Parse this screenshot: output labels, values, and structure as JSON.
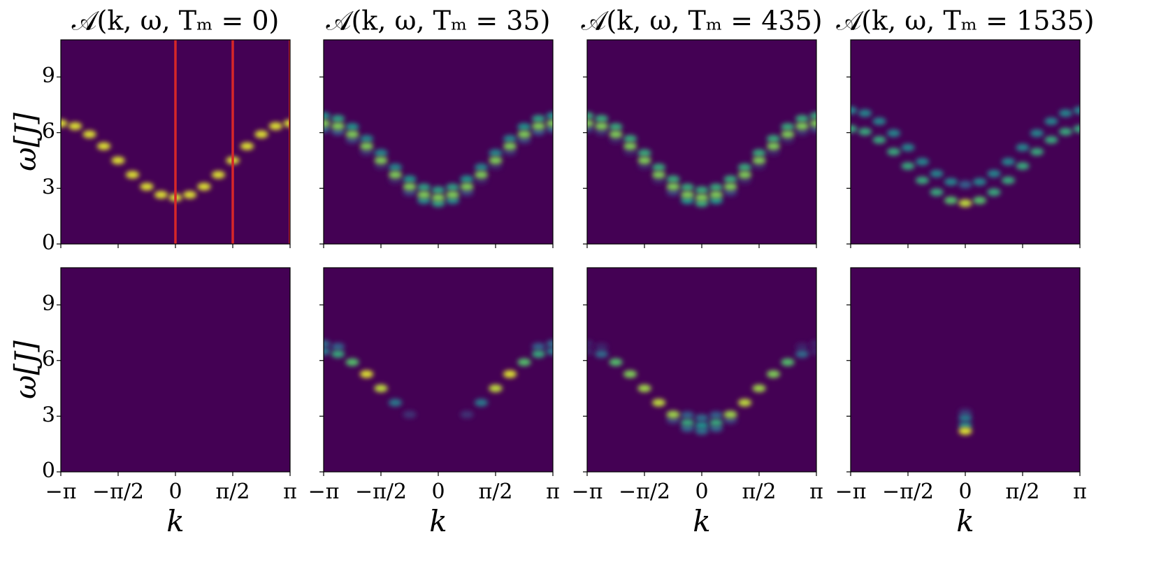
{
  "chart_data": [
    {
      "type": "heatmap",
      "title": "𝒜(k, ω, Tₘ = 0)",
      "ylabel": "ω[J]",
      "colormap": "viridis",
      "xlim": [
        -3.1416,
        3.1416
      ],
      "ylim": [
        0,
        11
      ],
      "xticks": [
        {
          "value": -3.1416,
          "label": "−π"
        },
        {
          "value": -1.5708,
          "label": "−π/2"
        },
        0,
        {
          "value": 1.5708,
          "label": "π/2"
        },
        {
          "value": 3.1416,
          "label": "π"
        }
      ],
      "yticks": [
        0,
        3,
        6,
        9
      ],
      "vlines": [
        0,
        1.5708,
        3.1416
      ],
      "vline_color": "#d62728",
      "x": [
        -3.142,
        -2.749,
        -2.356,
        -1.963,
        -1.571,
        -1.178,
        -0.785,
        -0.393,
        0,
        0.393,
        0.785,
        1.178,
        1.571,
        1.963,
        2.356,
        2.749,
        3.142
      ],
      "branches": [
        {
          "y": [
            6.5,
            6.35,
            5.91,
            5.27,
            4.5,
            3.73,
            3.09,
            2.65,
            2.5,
            2.65,
            3.09,
            3.73,
            4.5,
            5.27,
            5.91,
            6.35,
            6.5
          ],
          "values": [
            0.95,
            0.95,
            0.95,
            0.95,
            0.95,
            0.95,
            0.95,
            0.95,
            0.95,
            0.95,
            0.95,
            0.95,
            0.95,
            0.95,
            0.95,
            0.95,
            0.95
          ]
        }
      ]
    },
    {
      "type": "heatmap",
      "title": "𝒜(k, ω, Tₘ = 35)",
      "colormap": "viridis",
      "xlim": [
        -3.1416,
        3.1416
      ],
      "ylim": [
        0,
        11
      ],
      "xticks": [
        {
          "value": -3.1416,
          "label": "−π"
        },
        {
          "value": -1.5708,
          "label": "−π/2"
        },
        0,
        {
          "value": 1.5708,
          "label": "π/2"
        },
        {
          "value": 3.1416,
          "label": "π"
        }
      ],
      "yticks": [
        0,
        3,
        6,
        9
      ],
      "x": [
        -3.142,
        -2.749,
        -2.356,
        -1.963,
        -1.571,
        -1.178,
        -0.785,
        -0.393,
        0,
        0.393,
        0.785,
        1.178,
        1.571,
        1.963,
        2.356,
        2.749,
        3.142
      ],
      "branches": [
        {
          "y": [
            6.9,
            6.75,
            6.31,
            5.67,
            4.9,
            4.13,
            3.49,
            3.05,
            2.9,
            3.05,
            3.49,
            4.13,
            4.9,
            5.67,
            6.31,
            6.75,
            6.9
          ],
          "values": [
            0.5,
            0.55,
            0.5,
            0.45,
            0.45,
            0.45,
            0.5,
            0.55,
            0.55,
            0.55,
            0.5,
            0.45,
            0.45,
            0.45,
            0.5,
            0.55,
            0.5
          ]
        },
        {
          "y": [
            6.5,
            6.35,
            5.91,
            5.27,
            4.5,
            3.73,
            3.09,
            2.65,
            2.5,
            2.65,
            3.09,
            3.73,
            4.5,
            5.27,
            5.91,
            6.35,
            6.5
          ],
          "values": [
            0.8,
            0.8,
            0.8,
            0.8,
            0.8,
            0.8,
            0.8,
            0.8,
            0.8,
            0.8,
            0.8,
            0.8,
            0.8,
            0.8,
            0.8,
            0.8,
            0.8
          ]
        },
        {
          "y": [
            6.2,
            6.05,
            5.61,
            4.97,
            4.2,
            3.43,
            2.79,
            2.35,
            2.2,
            2.35,
            2.79,
            3.43,
            4.2,
            4.97,
            5.61,
            6.05,
            6.2
          ],
          "values": [
            0.3,
            0.25,
            0.2,
            0.15,
            0.1,
            0.1,
            0.2,
            0.45,
            0.55,
            0.45,
            0.2,
            0.1,
            0.1,
            0.15,
            0.2,
            0.25,
            0.3
          ]
        }
      ]
    },
    {
      "type": "heatmap",
      "title": "𝒜(k, ω, Tₘ = 435)",
      "colormap": "viridis",
      "xlim": [
        -3.1416,
        3.1416
      ],
      "ylim": [
        0,
        11
      ],
      "xticks": [
        {
          "value": -3.1416,
          "label": "−π"
        },
        {
          "value": -1.5708,
          "label": "−π/2"
        },
        0,
        {
          "value": 1.5708,
          "label": "π/2"
        },
        {
          "value": 3.1416,
          "label": "π"
        }
      ],
      "yticks": [
        0,
        3,
        6,
        9
      ],
      "x": [
        -3.142,
        -2.749,
        -2.356,
        -1.963,
        -1.571,
        -1.178,
        -0.785,
        -0.393,
        0,
        0.393,
        0.785,
        1.178,
        1.571,
        1.963,
        2.356,
        2.749,
        3.142
      ],
      "branches": [
        {
          "y": [
            6.9,
            6.75,
            6.31,
            5.67,
            4.9,
            4.13,
            3.49,
            3.05,
            2.9,
            3.05,
            3.49,
            4.13,
            4.9,
            5.67,
            6.31,
            6.75,
            6.9
          ],
          "values": [
            0.6,
            0.6,
            0.6,
            0.6,
            0.6,
            0.6,
            0.6,
            0.6,
            0.6,
            0.6,
            0.6,
            0.6,
            0.6,
            0.6,
            0.6,
            0.6,
            0.6
          ]
        },
        {
          "y": [
            6.5,
            6.35,
            5.91,
            5.27,
            4.5,
            3.73,
            3.09,
            2.65,
            2.5,
            2.65,
            3.09,
            3.73,
            4.5,
            5.27,
            5.91,
            6.35,
            6.5
          ],
          "values": [
            0.8,
            0.8,
            0.8,
            0.8,
            0.8,
            0.8,
            0.8,
            0.8,
            0.8,
            0.8,
            0.8,
            0.8,
            0.8,
            0.8,
            0.8,
            0.8,
            0.8
          ]
        },
        {
          "y": [
            6.2,
            6.05,
            5.61,
            4.97,
            4.2,
            3.43,
            2.79,
            2.35,
            2.2,
            2.35,
            2.79,
            3.43,
            4.2,
            4.97,
            5.61,
            6.05,
            6.2
          ],
          "values": [
            0.2,
            0.15,
            0.1,
            0.1,
            0.1,
            0.1,
            0.2,
            0.5,
            0.6,
            0.5,
            0.2,
            0.1,
            0.1,
            0.1,
            0.1,
            0.15,
            0.2
          ]
        }
      ]
    },
    {
      "type": "heatmap",
      "title": "𝒜(k, ω, Tₘ = 1535)",
      "colormap": "viridis",
      "xlim": [
        -3.1416,
        3.1416
      ],
      "ylim": [
        0,
        11
      ],
      "xticks": [
        {
          "value": -3.1416,
          "label": "−π"
        },
        {
          "value": -1.5708,
          "label": "−π/2"
        },
        0,
        {
          "value": 1.5708,
          "label": "π/2"
        },
        {
          "value": 3.1416,
          "label": "π"
        }
      ],
      "yticks": [
        0,
        3,
        6,
        9
      ],
      "x": [
        -3.142,
        -2.749,
        -2.356,
        -1.963,
        -1.571,
        -1.178,
        -0.785,
        -0.393,
        0,
        0.393,
        0.785,
        1.178,
        1.571,
        1.963,
        2.356,
        2.749,
        3.142
      ],
      "branches": [
        {
          "y": [
            7.2,
            7.05,
            6.61,
            5.97,
            5.2,
            4.43,
            3.79,
            3.35,
            3.2,
            3.35,
            3.79,
            4.43,
            5.2,
            5.97,
            6.61,
            7.05,
            7.2
          ],
          "values": [
            0.45,
            0.45,
            0.45,
            0.45,
            0.45,
            0.45,
            0.45,
            0.45,
            0.3,
            0.45,
            0.45,
            0.45,
            0.45,
            0.45,
            0.45,
            0.45,
            0.45
          ]
        },
        {
          "y": [
            6.2,
            6.05,
            5.61,
            4.97,
            4.2,
            3.43,
            2.79,
            2.35,
            2.2,
            2.35,
            2.79,
            3.43,
            4.2,
            4.97,
            5.61,
            6.05,
            6.2
          ],
          "values": [
            0.6,
            0.6,
            0.6,
            0.6,
            0.6,
            0.6,
            0.6,
            0.7,
            0.9,
            0.7,
            0.6,
            0.6,
            0.6,
            0.6,
            0.6,
            0.6,
            0.6
          ]
        }
      ]
    },
    {
      "type": "heatmap",
      "ylabel": "ω[J]",
      "xlabel": "k",
      "colormap": "viridis",
      "xlim": [
        -3.1416,
        3.1416
      ],
      "ylim": [
        0,
        11
      ],
      "xticks": [
        {
          "value": -3.1416,
          "label": "−π"
        },
        {
          "value": -1.5708,
          "label": "−π/2"
        },
        0,
        {
          "value": 1.5708,
          "label": "π/2"
        },
        {
          "value": 3.1416,
          "label": "π"
        }
      ],
      "yticks": [
        0,
        3,
        6,
        9
      ],
      "x": [
        -3.142,
        -2.749,
        -2.356,
        -1.963,
        -1.571,
        -1.178,
        -0.785,
        -0.393,
        0,
        0.393,
        0.785,
        1.178,
        1.571,
        1.963,
        2.356,
        2.749,
        3.142
      ],
      "branches": []
    },
    {
      "type": "heatmap",
      "xlabel": "k",
      "colormap": "viridis",
      "xlim": [
        -3.1416,
        3.1416
      ],
      "ylim": [
        0,
        11
      ],
      "xticks": [
        {
          "value": -3.1416,
          "label": "−π"
        },
        {
          "value": -1.5708,
          "label": "−π/2"
        },
        0,
        {
          "value": 1.5708,
          "label": "π/2"
        },
        {
          "value": 3.1416,
          "label": "π"
        }
      ],
      "yticks": [
        0,
        3,
        6,
        9
      ],
      "x": [
        -3.142,
        -2.749,
        -2.356,
        -1.963,
        -1.571,
        -1.178,
        -0.785,
        -0.393,
        0,
        0.393,
        0.785,
        1.178,
        1.571,
        1.963,
        2.356,
        2.749,
        3.142
      ],
      "branches": [
        {
          "y": [
            6.9,
            6.75,
            6.31,
            5.67,
            4.9,
            4.13,
            3.49,
            3.05,
            2.9,
            3.05,
            3.49,
            4.13,
            4.9,
            5.67,
            6.31,
            6.75,
            6.9
          ],
          "values": [
            0.35,
            0.3,
            null,
            null,
            null,
            null,
            null,
            null,
            null,
            null,
            null,
            null,
            null,
            null,
            null,
            0.3,
            0.35
          ]
        },
        {
          "y": [
            6.5,
            6.35,
            5.91,
            5.27,
            4.5,
            3.73,
            3.09,
            2.65,
            2.5,
            2.65,
            3.09,
            3.73,
            4.5,
            5.27,
            5.91,
            6.35,
            6.5
          ],
          "values": [
            0.4,
            0.6,
            0.7,
            0.95,
            0.9,
            0.4,
            0.15,
            null,
            null,
            null,
            0.15,
            0.4,
            0.9,
            0.95,
            0.7,
            0.6,
            0.4
          ]
        }
      ]
    },
    {
      "type": "heatmap",
      "xlabel": "k",
      "colormap": "viridis",
      "xlim": [
        -3.1416,
        3.1416
      ],
      "ylim": [
        0,
        11
      ],
      "xticks": [
        {
          "value": -3.1416,
          "label": "−π"
        },
        {
          "value": -1.5708,
          "label": "−π/2"
        },
        0,
        {
          "value": 1.5708,
          "label": "π/2"
        },
        {
          "value": 3.1416,
          "label": "π"
        }
      ],
      "yticks": [
        0,
        3,
        6,
        9
      ],
      "x": [
        -3.142,
        -2.749,
        -2.356,
        -1.963,
        -1.571,
        -1.178,
        -0.785,
        -0.393,
        0,
        0.393,
        0.785,
        1.178,
        1.571,
        1.963,
        2.356,
        2.749,
        3.142
      ],
      "branches": [
        {
          "y": [
            6.9,
            6.75,
            6.31,
            5.67,
            4.9,
            4.13,
            3.49,
            3.05,
            2.9,
            3.05,
            3.49,
            4.13,
            4.9,
            5.67,
            6.31,
            6.75,
            6.9
          ],
          "values": [
            0.1,
            0.1,
            null,
            null,
            null,
            null,
            null,
            0.3,
            0.35,
            0.3,
            null,
            null,
            null,
            null,
            null,
            0.1,
            0.1
          ]
        },
        {
          "y": [
            6.5,
            6.35,
            5.91,
            5.27,
            4.5,
            3.73,
            3.09,
            2.65,
            2.5,
            2.65,
            3.09,
            3.73,
            4.5,
            5.27,
            5.91,
            6.35,
            6.5
          ],
          "values": [
            0.1,
            0.35,
            0.7,
            0.8,
            0.85,
            0.9,
            0.85,
            0.6,
            0.5,
            0.6,
            0.85,
            0.9,
            0.85,
            0.8,
            0.7,
            0.35,
            0.1
          ]
        },
        {
          "y": [
            6.2,
            6.05,
            5.61,
            4.97,
            4.2,
            3.43,
            2.79,
            2.35,
            2.2,
            2.35,
            2.79,
            3.43,
            4.2,
            4.97,
            5.61,
            6.05,
            6.2
          ],
          "values": [
            null,
            null,
            null,
            null,
            null,
            null,
            0.2,
            0.3,
            0.35,
            0.3,
            0.2,
            null,
            null,
            null,
            null,
            null,
            null
          ]
        }
      ]
    },
    {
      "type": "heatmap",
      "xlabel": "k",
      "colormap": "viridis",
      "xlim": [
        -3.1416,
        3.1416
      ],
      "ylim": [
        0,
        11
      ],
      "xticks": [
        {
          "value": -3.1416,
          "label": "−π"
        },
        {
          "value": -1.5708,
          "label": "−π/2"
        },
        0,
        {
          "value": 1.5708,
          "label": "π/2"
        },
        {
          "value": 3.1416,
          "label": "π"
        }
      ],
      "yticks": [
        0,
        3,
        6,
        9
      ],
      "x": [
        -3.142,
        -2.749,
        -2.356,
        -1.963,
        -1.571,
        -1.178,
        -0.785,
        -0.393,
        0,
        0.393,
        0.785,
        1.178,
        1.571,
        1.963,
        2.356,
        2.749,
        3.142
      ],
      "branches": [
        {
          "y": [
            7.2,
            7.05,
            6.61,
            5.97,
            5.2,
            4.43,
            3.79,
            3.35,
            3.2,
            3.35,
            3.79,
            4.43,
            5.2,
            5.97,
            6.61,
            7.05,
            7.2
          ],
          "values": [
            null,
            null,
            null,
            null,
            null,
            null,
            null,
            null,
            0.15,
            null,
            null,
            null,
            null,
            null,
            null,
            null,
            null
          ]
        },
        {
          "y": [
            6.9,
            6.75,
            6.31,
            5.67,
            4.9,
            4.13,
            3.49,
            3.05,
            2.9,
            3.05,
            3.49,
            4.13,
            4.9,
            5.67,
            6.31,
            6.75,
            6.9
          ],
          "values": [
            null,
            null,
            null,
            null,
            null,
            null,
            null,
            null,
            0.4,
            null,
            null,
            null,
            null,
            null,
            null,
            null,
            null
          ]
        },
        {
          "y": [
            6.5,
            6.35,
            5.91,
            5.27,
            4.5,
            3.73,
            3.09,
            2.65,
            2.5,
            2.65,
            3.09,
            3.73,
            4.5,
            5.27,
            5.91,
            6.35,
            6.5
          ],
          "values": [
            null,
            null,
            null,
            null,
            null,
            null,
            null,
            null,
            0.45,
            null,
            null,
            null,
            null,
            null,
            null,
            null,
            null
          ]
        },
        {
          "y": [
            6.2,
            6.05,
            5.61,
            4.97,
            4.2,
            3.43,
            2.79,
            2.35,
            2.2,
            2.35,
            2.79,
            3.43,
            4.2,
            4.97,
            5.61,
            6.05,
            6.2
          ],
          "values": [
            null,
            null,
            null,
            null,
            null,
            null,
            null,
            null,
            0.95,
            null,
            null,
            null,
            null,
            null,
            null,
            null,
            null
          ]
        }
      ]
    }
  ]
}
